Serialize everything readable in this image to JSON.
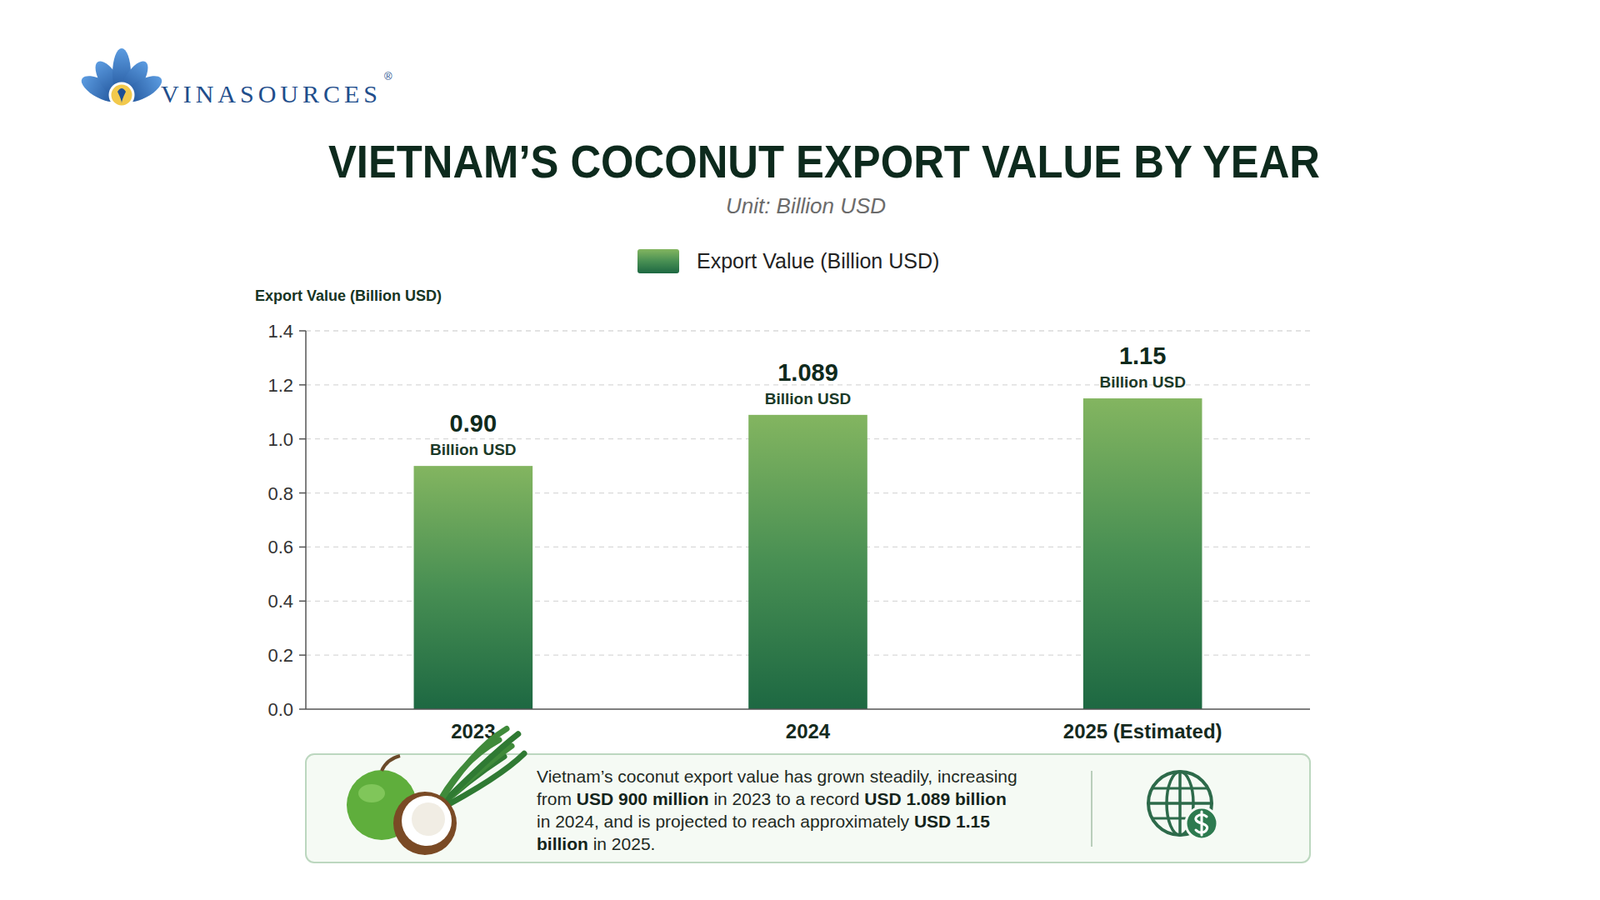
{
  "header": {
    "brand": "VINASOURCES",
    "registered": "®"
  },
  "chart_data": {
    "type": "bar",
    "title": "VIETNAM’S COCONUT EXPORT VALUE BY YEAR",
    "subtitle": "Unit: Billion USD",
    "y_label": "Export Value (Billion USD)",
    "categories": [
      "2023",
      "2024",
      "2025 (Estimated)"
    ],
    "series": [
      {
        "name": "Export Value (Billion USD)",
        "color": "#5c9e58",
        "values": [
          0.9,
          1.089,
          1.15
        ],
        "value_labels": [
          "0.90",
          "1.089",
          "1.15"
        ]
      }
    ],
    "value_label_unit": "Billion USD",
    "ylim": [
      0,
      1.4
    ],
    "yticks": [
      {
        "value": 0,
        "label": "0.0"
      },
      0.2,
      0.4,
      0.6,
      0.8,
      {
        "value": 1,
        "label": "1.0"
      },
      1.2,
      1.4
    ],
    "grid": true,
    "legend": "top",
    "data_labels": true,
    "note": [
      "Vietnam’s coconut export value has grown steadily, increasing from ",
      "USD 900 million",
      " in 2023 to a record ",
      "USD 1.089 billion",
      " in 2024, and is projected to reach approximately ",
      "USD 1.15 billion",
      " in 2025."
    ]
  }
}
